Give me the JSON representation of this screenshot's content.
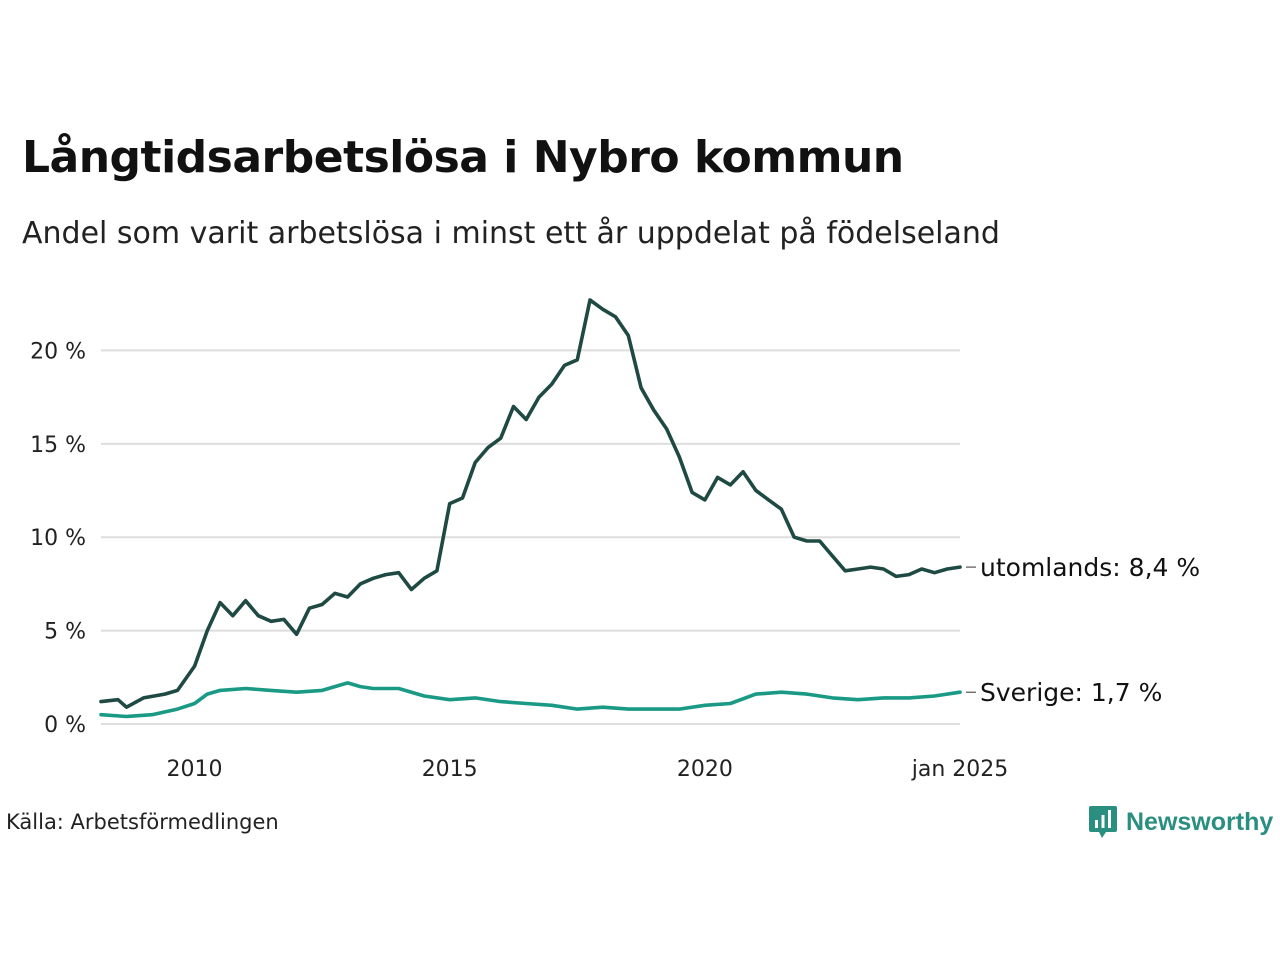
{
  "header": {
    "title": "Långtidsarbetslösa i Nybro kommun",
    "subtitle": "Andel som varit arbetslösa i minst ett år uppdelat på födelseland"
  },
  "footer": {
    "source": "Källa: Arbetsförmedlingen",
    "brand": "Newsworthy"
  },
  "colors": {
    "utomlands": "#1f4a44",
    "sverige": "#1a9a85",
    "grid": "#dedede",
    "brand": "#2a8f80"
  },
  "chart_data": {
    "type": "line",
    "title": "Långtidsarbetslösa i Nybro kommun",
    "subtitle": "Andel som varit arbetslösa i minst ett år uppdelat på födelseland",
    "xlim": [
      "2008-03",
      "2025-01"
    ],
    "ylim": [
      0,
      22.7
    ],
    "y_unit": "%",
    "y_ticks": [
      0,
      5,
      10,
      15,
      20
    ],
    "y_tick_labels": [
      "0 %",
      "5 %",
      "10 %",
      "15 %",
      "20 %"
    ],
    "x_ticks": [
      "2010-01",
      "2015-01",
      "2020-01",
      "2025-01"
    ],
    "x_tick_labels": [
      "2010",
      "2015",
      "2020",
      "jan 2025"
    ],
    "grid": "horizontal",
    "series": [
      {
        "name": "utomlands",
        "end_label": "utomlands: 8,4 %",
        "color": "#1f4a44",
        "points": [
          [
            "2008-03",
            1.2
          ],
          [
            "2008-07",
            1.3
          ],
          [
            "2008-09",
            0.9
          ],
          [
            "2009-01",
            1.4
          ],
          [
            "2009-06",
            1.6
          ],
          [
            "2009-09",
            1.8
          ],
          [
            "2010-01",
            3.1
          ],
          [
            "2010-04",
            5.0
          ],
          [
            "2010-07",
            6.5
          ],
          [
            "2010-10",
            5.8
          ],
          [
            "2011-01",
            6.6
          ],
          [
            "2011-04",
            5.8
          ],
          [
            "2011-07",
            5.5
          ],
          [
            "2011-10",
            5.6
          ],
          [
            "2012-01",
            4.8
          ],
          [
            "2012-04",
            6.2
          ],
          [
            "2012-07",
            6.4
          ],
          [
            "2012-10",
            7.0
          ],
          [
            "2013-01",
            6.8
          ],
          [
            "2013-04",
            7.5
          ],
          [
            "2013-07",
            7.8
          ],
          [
            "2013-10",
            8.0
          ],
          [
            "2014-01",
            8.1
          ],
          [
            "2014-04",
            7.2
          ],
          [
            "2014-07",
            7.8
          ],
          [
            "2014-10",
            8.2
          ],
          [
            "2015-01",
            11.8
          ],
          [
            "2015-04",
            12.1
          ],
          [
            "2015-07",
            14.0
          ],
          [
            "2015-10",
            14.8
          ],
          [
            "2016-01",
            15.3
          ],
          [
            "2016-04",
            17.0
          ],
          [
            "2016-07",
            16.3
          ],
          [
            "2016-10",
            17.5
          ],
          [
            "2017-01",
            18.2
          ],
          [
            "2017-04",
            19.2
          ],
          [
            "2017-07",
            19.5
          ],
          [
            "2017-10",
            22.7
          ],
          [
            "2018-01",
            22.2
          ],
          [
            "2018-04",
            21.8
          ],
          [
            "2018-07",
            20.8
          ],
          [
            "2018-10",
            18.0
          ],
          [
            "2019-01",
            16.8
          ],
          [
            "2019-04",
            15.8
          ],
          [
            "2019-07",
            14.3
          ],
          [
            "2019-10",
            12.4
          ],
          [
            "2020-01",
            12.0
          ],
          [
            "2020-04",
            13.2
          ],
          [
            "2020-07",
            12.8
          ],
          [
            "2020-10",
            13.5
          ],
          [
            "2021-01",
            12.5
          ],
          [
            "2021-04",
            12.0
          ],
          [
            "2021-07",
            11.5
          ],
          [
            "2021-10",
            10.0
          ],
          [
            "2022-01",
            9.8
          ],
          [
            "2022-04",
            9.8
          ],
          [
            "2022-07",
            9.0
          ],
          [
            "2022-10",
            8.2
          ],
          [
            "2023-01",
            8.3
          ],
          [
            "2023-04",
            8.4
          ],
          [
            "2023-07",
            8.3
          ],
          [
            "2023-10",
            7.9
          ],
          [
            "2024-01",
            8.0
          ],
          [
            "2024-04",
            8.3
          ],
          [
            "2024-07",
            8.1
          ],
          [
            "2024-10",
            8.3
          ],
          [
            "2025-01",
            8.4
          ]
        ]
      },
      {
        "name": "Sverige",
        "end_label": "Sverige: 1,7 %",
        "color": "#1a9a85",
        "points": [
          [
            "2008-03",
            0.5
          ],
          [
            "2008-09",
            0.4
          ],
          [
            "2009-03",
            0.5
          ],
          [
            "2009-09",
            0.8
          ],
          [
            "2010-01",
            1.1
          ],
          [
            "2010-04",
            1.6
          ],
          [
            "2010-07",
            1.8
          ],
          [
            "2011-01",
            1.9
          ],
          [
            "2011-07",
            1.8
          ],
          [
            "2012-01",
            1.7
          ],
          [
            "2012-07",
            1.8
          ],
          [
            "2012-10",
            2.0
          ],
          [
            "2013-01",
            2.2
          ],
          [
            "2013-04",
            2.0
          ],
          [
            "2013-07",
            1.9
          ],
          [
            "2014-01",
            1.9
          ],
          [
            "2014-07",
            1.5
          ],
          [
            "2015-01",
            1.3
          ],
          [
            "2015-07",
            1.4
          ],
          [
            "2016-01",
            1.2
          ],
          [
            "2016-07",
            1.1
          ],
          [
            "2017-01",
            1.0
          ],
          [
            "2017-07",
            0.8
          ],
          [
            "2018-01",
            0.9
          ],
          [
            "2018-07",
            0.8
          ],
          [
            "2019-01",
            0.8
          ],
          [
            "2019-07",
            0.8
          ],
          [
            "2020-01",
            1.0
          ],
          [
            "2020-07",
            1.1
          ],
          [
            "2021-01",
            1.6
          ],
          [
            "2021-07",
            1.7
          ],
          [
            "2022-01",
            1.6
          ],
          [
            "2022-07",
            1.4
          ],
          [
            "2023-01",
            1.3
          ],
          [
            "2023-07",
            1.4
          ],
          [
            "2024-01",
            1.4
          ],
          [
            "2024-07",
            1.5
          ],
          [
            "2025-01",
            1.7
          ]
        ]
      }
    ]
  }
}
